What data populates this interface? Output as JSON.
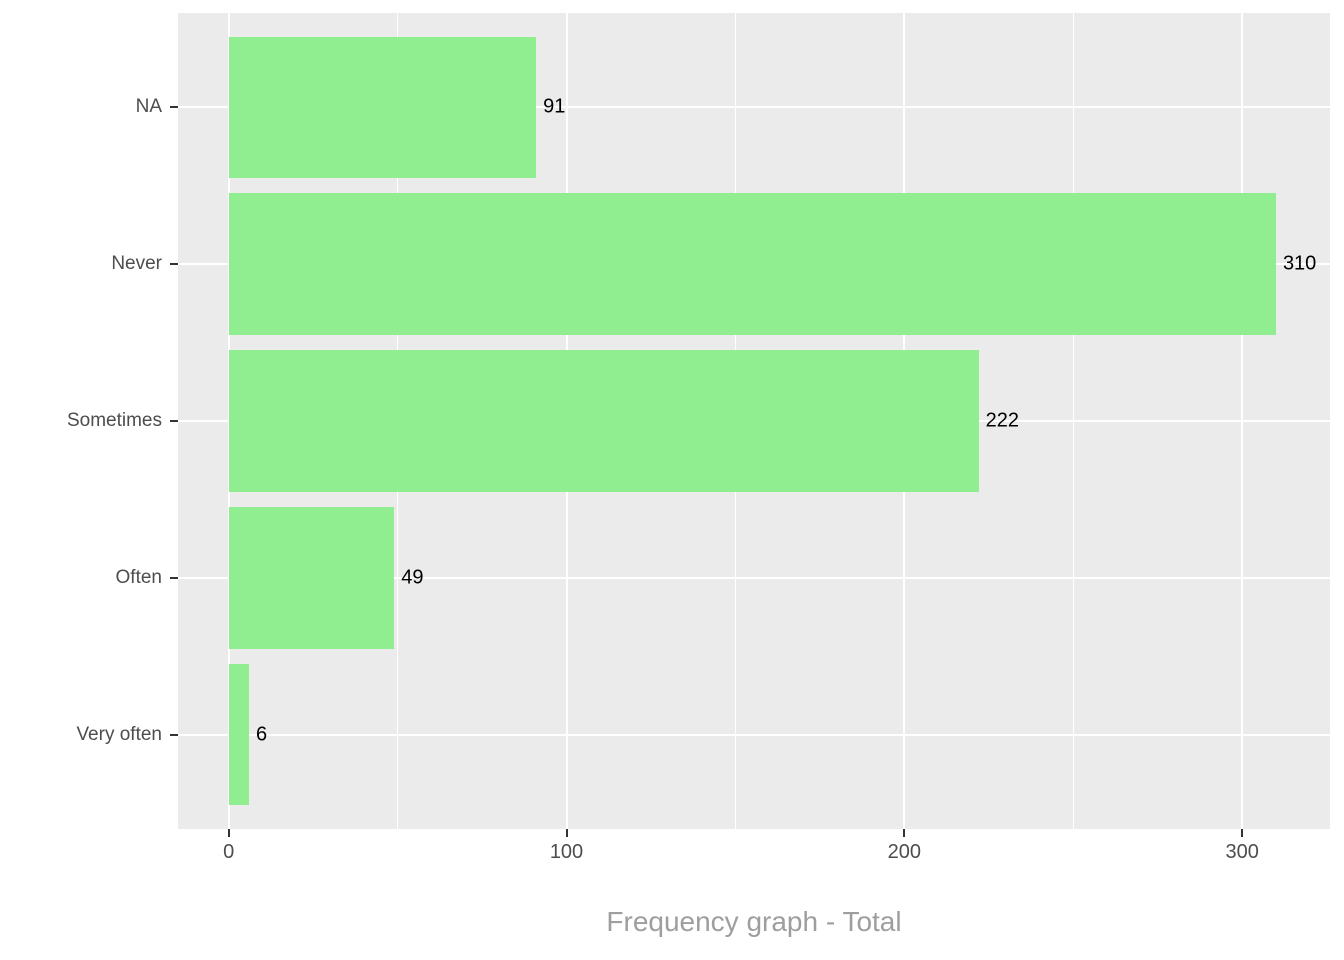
{
  "title": "Frequency graph - Total",
  "colors": {
    "panel_background": "#EBEBEB",
    "grid": "#FFFFFF",
    "bar_fill": "#90EE90",
    "axis_text": "#4D4D4D",
    "value_label_text": "#000000",
    "title_text": "#9E9E9E",
    "tick_mark": "#333333"
  },
  "chart_data": {
    "type": "bar",
    "orientation": "horizontal",
    "title": "Frequency graph - Total",
    "title_position": "bottom",
    "xlabel": "",
    "ylabel": "",
    "categories": [
      "NA",
      "Never",
      "Sometimes",
      "Often",
      "Very often"
    ],
    "values": [
      91,
      310,
      222,
      49,
      6
    ],
    "value_labels": [
      "91",
      "310",
      "222",
      "49",
      "6"
    ],
    "x_ticks": [
      0,
      100,
      200,
      300
    ],
    "x_minor_ticks": [
      50,
      150,
      250
    ],
    "x_axis_range": [
      -15,
      326
    ],
    "legend": false,
    "grid": true,
    "bar_width_fraction": 0.9
  }
}
